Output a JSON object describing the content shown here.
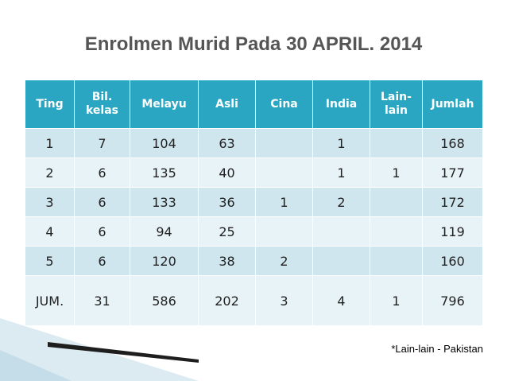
{
  "title": "Enrolmen Murid Pada 30 APRIL. 2014",
  "table": {
    "headers": [
      "Ting",
      "Bil.\nkelas",
      "Melayu",
      "Asli",
      "Cina",
      "India",
      "Lain-\nlain",
      "Jumlah"
    ],
    "rows": [
      [
        "1",
        "7",
        "104",
        "63",
        "",
        "1",
        "",
        "168"
      ],
      [
        "2",
        "6",
        "135",
        "40",
        "",
        "1",
        "1",
        "177"
      ],
      [
        "3",
        "6",
        "133",
        "36",
        "1",
        "2",
        "",
        "172"
      ],
      [
        "4",
        "6",
        "94",
        "25",
        "",
        "",
        "",
        "119"
      ],
      [
        "5",
        "6",
        "120",
        "38",
        "2",
        "",
        "",
        "160"
      ],
      [
        "JUM.",
        "31",
        "586",
        "202",
        "3",
        "4",
        "1",
        "796"
      ]
    ]
  },
  "note": "*Lain-lain - Pakistan",
  "colors": {
    "header_bg": "#2aa6c2",
    "row_odd": "#cfe6ee",
    "row_even": "#e8f3f7",
    "title": "#555555"
  }
}
